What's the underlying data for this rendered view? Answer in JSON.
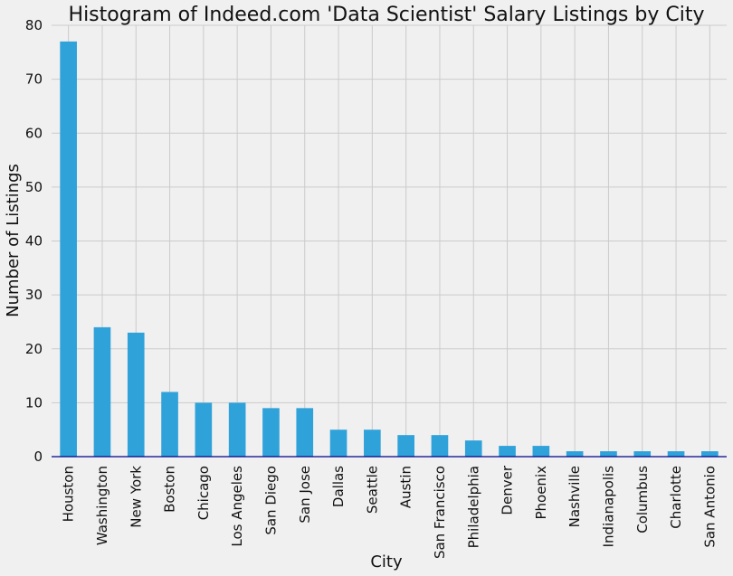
{
  "chart_data": {
    "type": "bar",
    "title": "Histogram of Indeed.com 'Data Scientist' Salary Listings by City",
    "xlabel": "City",
    "ylabel": "Number of Listings",
    "ylim": [
      0,
      80
    ],
    "yticks": [
      0,
      10,
      20,
      30,
      40,
      50,
      60,
      70,
      80
    ],
    "categories": [
      "Houston",
      "Washington",
      "New York",
      "Boston",
      "Chicago",
      "Los Angeles",
      "San Diego",
      "San Jose",
      "Dallas",
      "Seattle",
      "Austin",
      "San Francisco",
      "Philadelphia",
      "Denver",
      "Phoenix",
      "Nashville",
      "Indianapolis",
      "Columbus",
      "Charlotte",
      "San Antonio"
    ],
    "values": [
      77,
      24,
      23,
      12,
      10,
      10,
      9,
      9,
      5,
      5,
      4,
      4,
      3,
      2,
      2,
      1,
      1,
      1,
      1,
      1
    ],
    "grid": true,
    "legend": "none",
    "colors": {
      "bar": "#30a2da",
      "grid": "#cbcbcb",
      "background": "#f0f0f0",
      "axis": "#00008b"
    }
  }
}
